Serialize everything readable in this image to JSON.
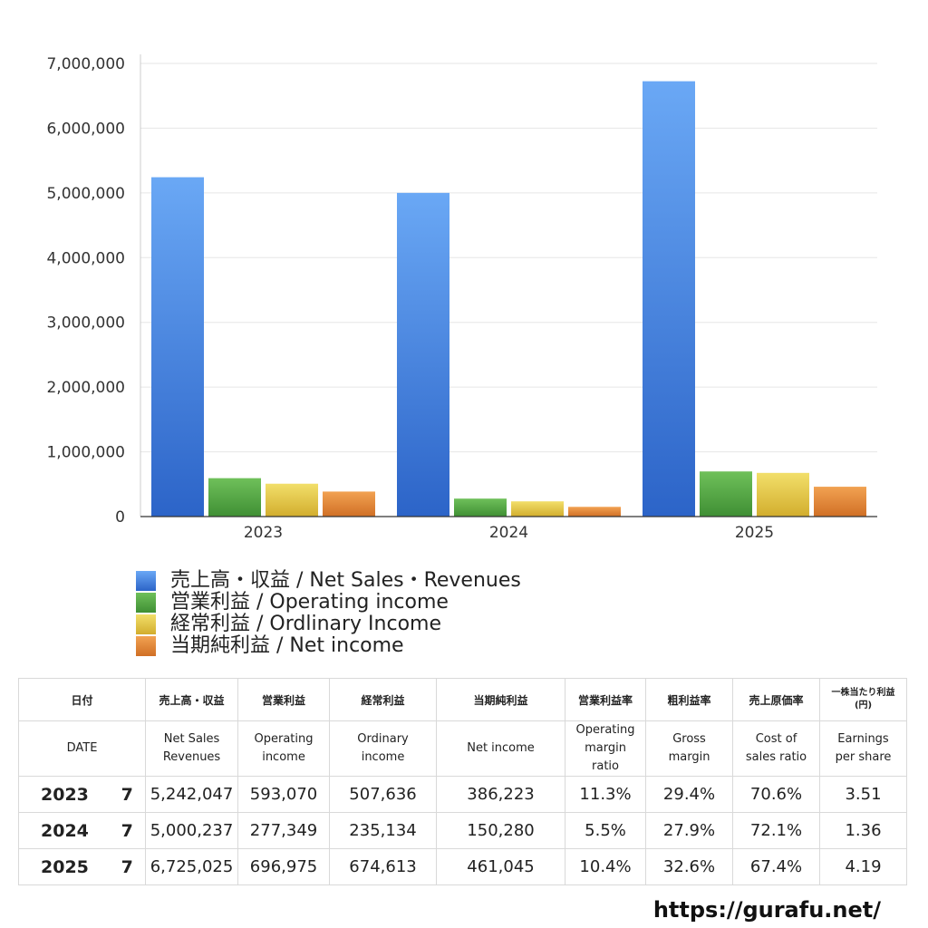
{
  "chart_data": {
    "type": "bar",
    "categories": [
      "2023",
      "2024",
      "2025"
    ],
    "series": [
      {
        "name": "売上高・収益 / Net Sales・Revenues",
        "values": [
          5242047,
          5000237,
          6725025
        ],
        "color_top": "#6aa8f5",
        "color_bottom": "#2c64c8"
      },
      {
        "name": "営業利益 / Operating income",
        "values": [
          593070,
          277349,
          696975
        ],
        "color_top": "#6fc05a",
        "color_bottom": "#3f8f34"
      },
      {
        "name": "経常利益 / Ordlinary Income",
        "values": [
          507636,
          235134,
          674613
        ],
        "color_top": "#f2df6a",
        "color_bottom": "#d2ad2d"
      },
      {
        "name": "当期純利益 / Net income",
        "values": [
          386223,
          150280,
          461045
        ],
        "color_top": "#f2a252",
        "color_bottom": "#d06f25"
      }
    ],
    "ylim": [
      0,
      7000000
    ],
    "yticks": [
      0,
      1000000,
      2000000,
      3000000,
      4000000,
      5000000,
      6000000,
      7000000
    ],
    "ytick_labels": [
      "0",
      "1,000,000",
      "2,000,000",
      "3,000,000",
      "4,000,000",
      "5,000,000",
      "6,000,000",
      "7,000,000"
    ],
    "grid": true,
    "legend_position": "bottom-left"
  },
  "table": {
    "header_jp": {
      "date": "日付",
      "sales": "売上高・収益",
      "operating": "営業利益",
      "ordinary": "経常利益",
      "net": "当期純利益",
      "op_margin": "営業利益率",
      "gross": "粗利益率",
      "cost": "売上原価率",
      "eps_1": "一株当たり利益",
      "eps_2": "(円)"
    },
    "header_en": {
      "date": "DATE",
      "sales_1": "Net Sales",
      "sales_2": "Revenues",
      "operating_1": "Operating",
      "operating_2": "income",
      "ordinary_1": "Ordinary",
      "ordinary_2": "income",
      "net": "Net income",
      "op_margin_1": "Operating",
      "op_margin_2": "margin",
      "op_margin_3": "ratio",
      "gross_1": "Gross",
      "gross_2": "margin",
      "cost_1": "Cost of",
      "cost_2": "sales ratio",
      "eps_1": "Earnings",
      "eps_2": "per share"
    },
    "rows": [
      {
        "year": "2023",
        "month": "7",
        "sales": "5,242,047",
        "operating": "593,070",
        "ordinary": "507,636",
        "net": "386,223",
        "op_margin": "11.3%",
        "gross": "29.4%",
        "cost": "70.6%",
        "eps": "3.51"
      },
      {
        "year": "2024",
        "month": "7",
        "sales": "5,000,237",
        "operating": "277,349",
        "ordinary": "235,134",
        "net": "150,280",
        "op_margin": "5.5%",
        "gross": "27.9%",
        "cost": "72.1%",
        "eps": "1.36"
      },
      {
        "year": "2025",
        "month": "7",
        "sales": "6,725,025",
        "operating": "696,975",
        "ordinary": "674,613",
        "net": "461,045",
        "op_margin": "10.4%",
        "gross": "32.6%",
        "cost": "67.4%",
        "eps": "4.19"
      }
    ]
  },
  "footer": {
    "url": "https://gurafu.net/"
  }
}
